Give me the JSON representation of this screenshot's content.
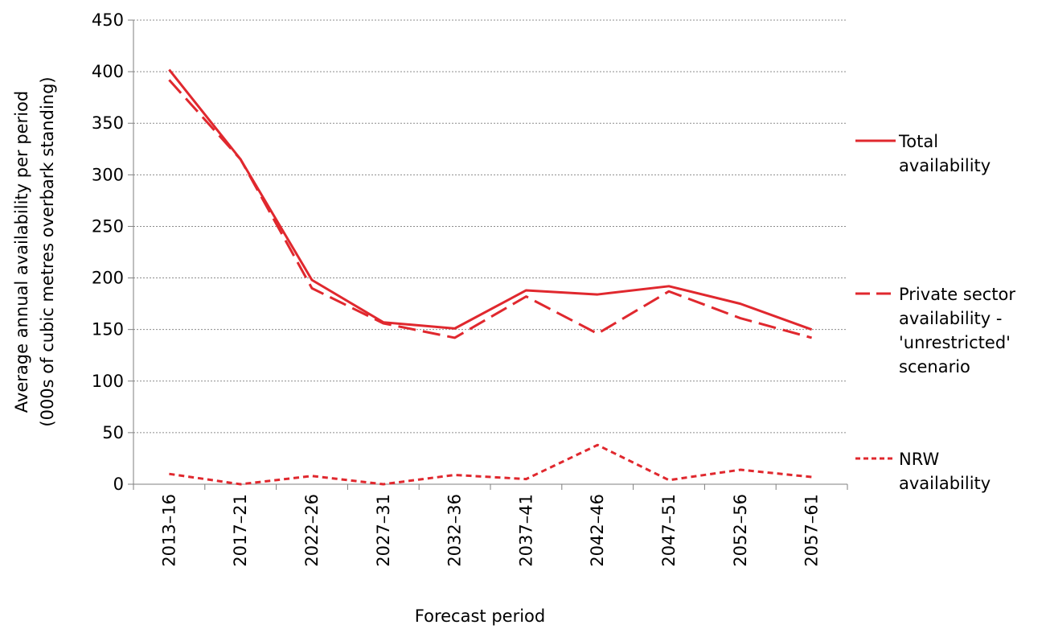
{
  "chart_data": {
    "type": "line",
    "title": "",
    "xlabel": "Forecast period",
    "ylabel_lines": [
      "Average annual availability per period",
      "(000s of cubic metres overbark standing)"
    ],
    "categories": [
      "2013–16",
      "2017–21",
      "2022–26",
      "2027–31",
      "2032–36",
      "2037–41",
      "2042–46",
      "2047–51",
      "2052–56",
      "2057–61"
    ],
    "ylim": [
      0,
      450
    ],
    "yticks": [
      0,
      50,
      100,
      150,
      200,
      250,
      300,
      350,
      400,
      450
    ],
    "grid": true,
    "legend_position": "right",
    "series": [
      {
        "name": "Total availability",
        "legend_lines": [
          "Total",
          "availability"
        ],
        "style": "solid",
        "color": "#e0282e",
        "values": [
          402,
          315,
          198,
          157,
          151,
          188,
          184,
          192,
          175,
          150
        ]
      },
      {
        "name": "Private sector availability - 'unrestricted' scenario",
        "legend_lines": [
          "Private sector",
          "availability -",
          "'unrestricted'",
          "scenario"
        ],
        "style": "long-dash",
        "color": "#e0282e",
        "values": [
          392,
          315,
          190,
          156,
          142,
          182,
          146,
          187,
          161,
          142
        ]
      },
      {
        "name": "NRW availability",
        "legend_lines": [
          "NRW",
          "availability"
        ],
        "style": "short-dash",
        "color": "#e0282e",
        "values": [
          10,
          0,
          8,
          0,
          9,
          5,
          38,
          4,
          14,
          7
        ]
      }
    ]
  }
}
